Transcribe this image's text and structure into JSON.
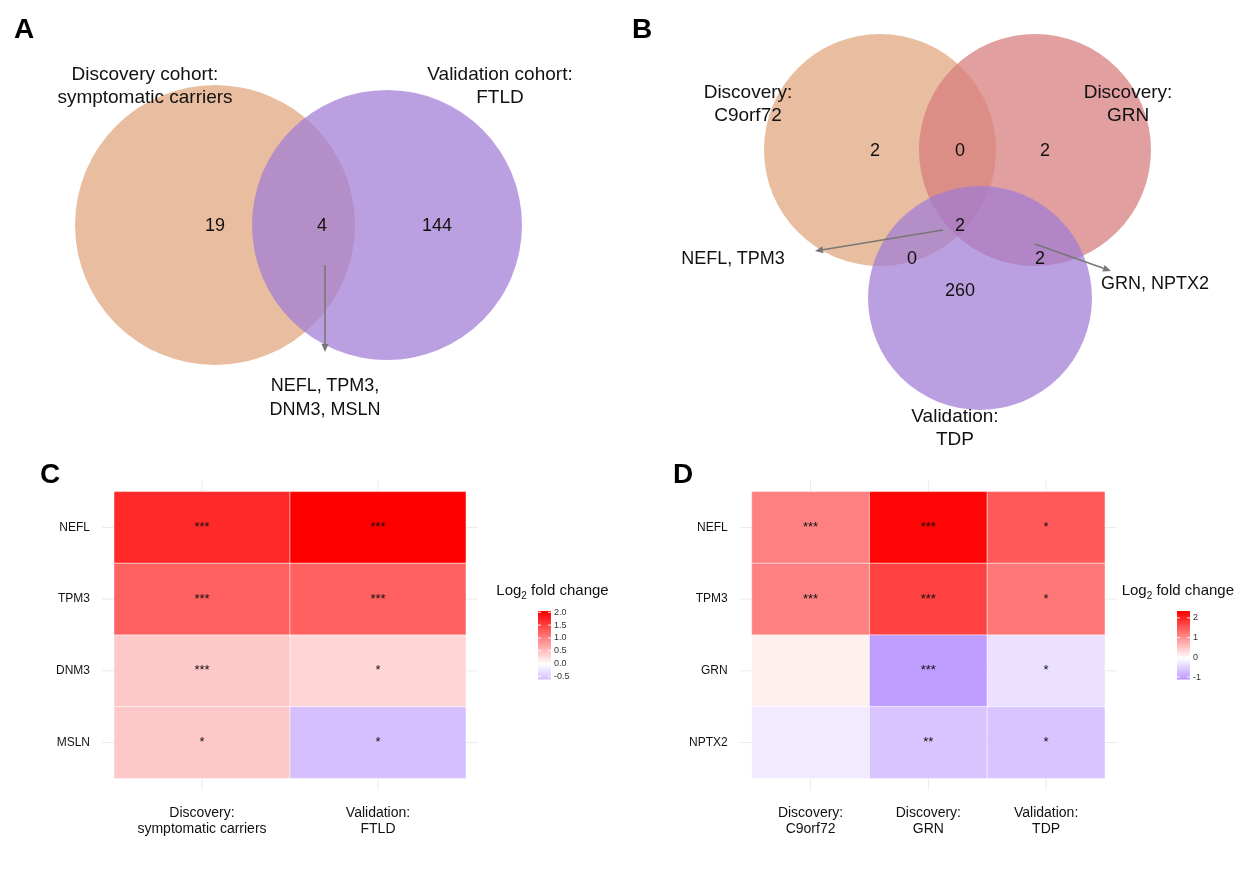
{
  "chart_data": [
    {
      "type": "other",
      "title": "A",
      "categories": [
        "Discovery cohort:\nsymptomatic carriers",
        "Validation cohort:\nFTLD"
      ],
      "colors": [
        "#e0a47c",
        "#a07cd4"
      ],
      "annotations": [
        "19",
        "4",
        "144",
        "NEFL, TPM3,\nDNM3, MSLN"
      ]
    },
    {
      "type": "other",
      "title": "B",
      "categories": [
        "Discovery:\nC9orf72",
        "Discovery:\nGRN",
        "Validation:\nTDP"
      ],
      "colors": [
        "#e0a47c",
        "#d67a7c",
        "#a07cd4"
      ],
      "annotations": [
        "2",
        "0",
        "2",
        "2",
        "0",
        "2",
        "260",
        "NEFL, TPM3",
        "GRN, NPTX2"
      ]
    },
    {
      "type": "heatmap",
      "title": "C",
      "categories": [
        "Discovery:\nsymptomatic carriers",
        "Validation:\nFTLD"
      ],
      "y_categories": [
        "NEFL",
        "TPM3",
        "DNM3",
        "MSLN"
      ],
      "cells": [
        [
          1.72,
          2.05
        ],
        [
          1.28,
          1.28
        ],
        [
          0.44,
          0.33
        ],
        [
          0.44,
          -0.6
        ]
      ],
      "cell_labels": [
        [
          "***",
          "***"
        ],
        [
          "***",
          "***"
        ],
        [
          "***",
          "*"
        ],
        [
          "*",
          "*"
        ]
      ],
      "clabel": "Log$_{2}$ fold change",
      "clim": [
        -0.6,
        2.05
      ],
      "cticks": [
        {
          "value": -0.5,
          "label": "-0.5"
        },
        {
          "value": 0,
          "label": "0.0"
        },
        {
          "value": 0.5,
          "label": "0.5"
        },
        {
          "value": 1,
          "label": "1.0"
        },
        {
          "value": 1.5,
          "label": "1.5"
        },
        {
          "value": 2,
          "label": "2.0"
        }
      ],
      "grid": true
    },
    {
      "type": "heatmap",
      "title": "D",
      "categories": [
        "Discovery:\nC9orf72",
        "Discovery:\nGRN",
        "Validation:\nTDP"
      ],
      "y_categories": [
        "NEFL",
        "TPM3",
        "GRN",
        "NPTX2"
      ],
      "cells": [
        [
          1.17,
          2.3,
          1.53
        ],
        [
          1.17,
          1.75,
          1.24
        ],
        [
          0.14,
          -1.05,
          -0.33
        ],
        [
          -0.21,
          -0.63,
          -0.63
        ]
      ],
      "cell_labels": [
        [
          "***",
          "***",
          "*"
        ],
        [
          "***",
          "***",
          "*"
        ],
        [
          null,
          "***",
          "*"
        ],
        [
          null,
          "**",
          "*"
        ]
      ],
      "clabel": "Log$_{2}$ fold change",
      "clim": [
        -1.1,
        2.35
      ],
      "cticks": [
        -1,
        0,
        1,
        2
      ],
      "grid": true
    }
  ]
}
